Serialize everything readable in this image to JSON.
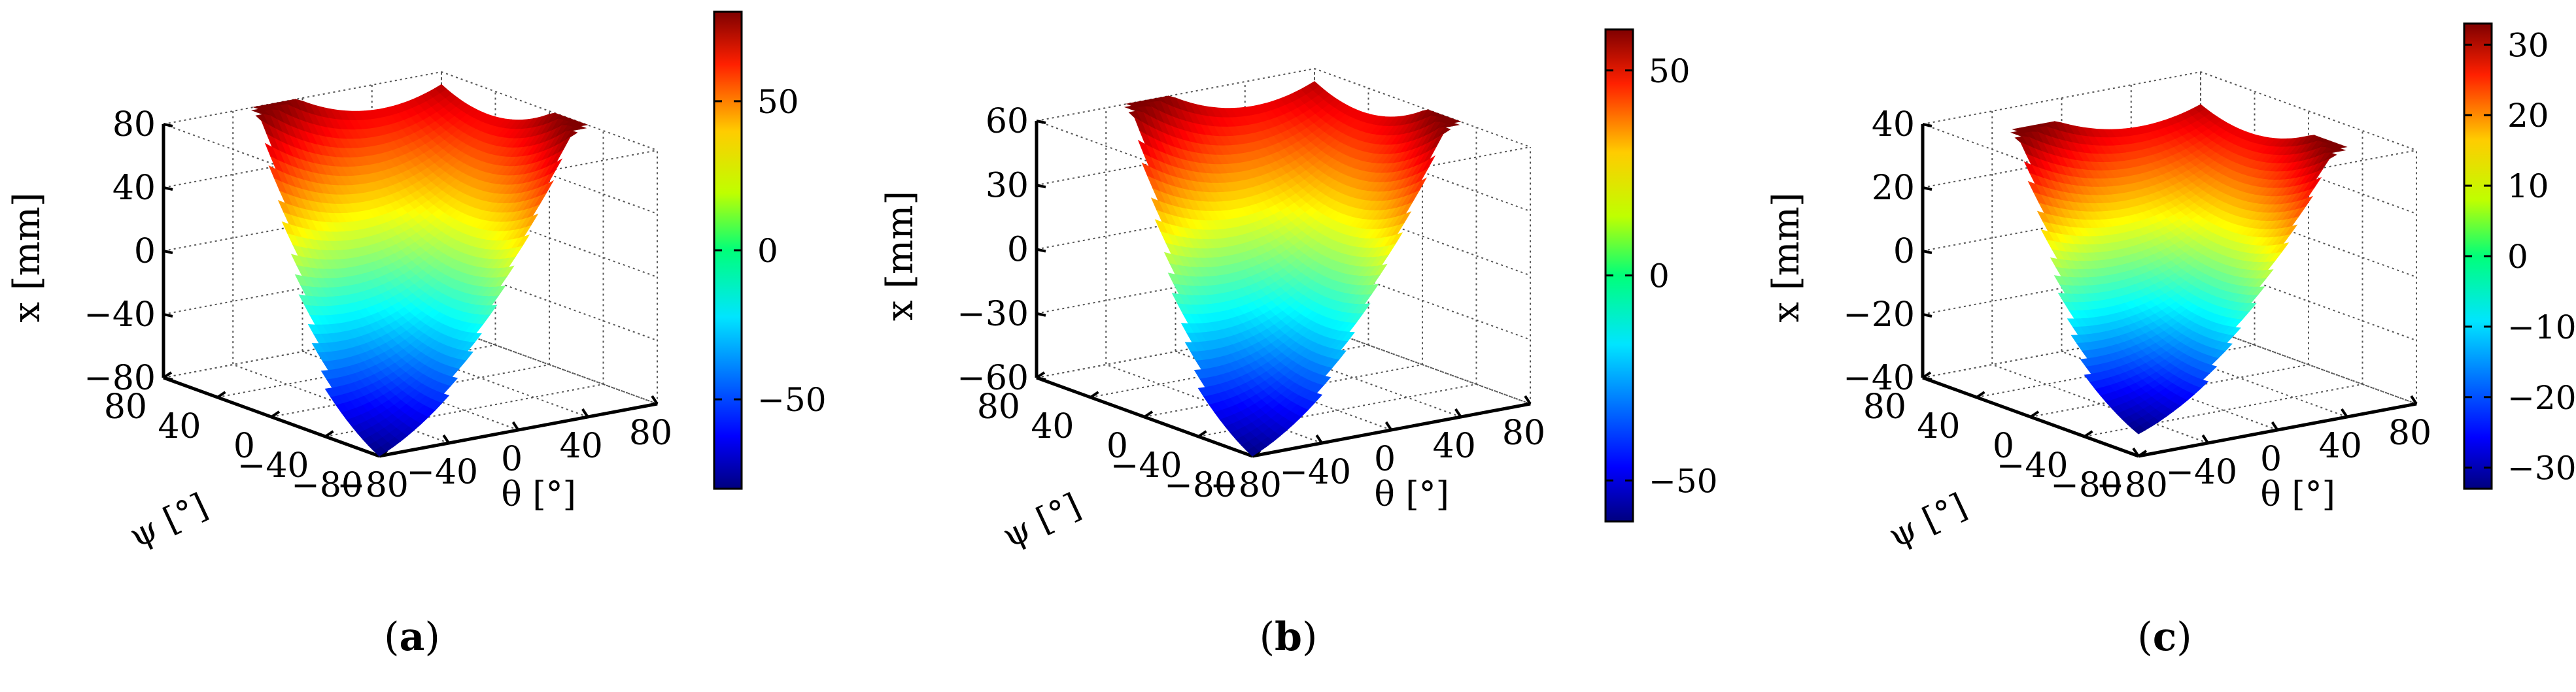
{
  "figure": {
    "captions": [
      "a",
      "b",
      "c"
    ]
  },
  "chart_data": [
    {
      "type": "surface",
      "panel": "a",
      "zlabel": "x [mm]",
      "ylabel": "ψ [°]",
      "xlabel": "θ [°]",
      "xlim": [
        -80,
        80
      ],
      "ylim": [
        -80,
        80
      ],
      "zlim": [
        -80,
        80
      ],
      "xticks": [
        -80,
        -40,
        0,
        40,
        80
      ],
      "yticks": [
        -80,
        -40,
        0,
        40,
        80
      ],
      "zticks": [
        -80,
        -40,
        0,
        40,
        80
      ],
      "z_min": -80,
      "z_max": 80,
      "z_center": 0,
      "colorbar": {
        "min": -80,
        "max": 80,
        "ticks": [
          -50,
          0,
          50
        ],
        "colormap": "jet"
      },
      "grid": true
    },
    {
      "type": "surface",
      "panel": "b",
      "zlabel": "x [mm]",
      "ylabel": "ψ [°]",
      "xlabel": "θ [°]",
      "xlim": [
        -80,
        80
      ],
      "ylim": [
        -80,
        80
      ],
      "zlim": [
        -60,
        60
      ],
      "xticks": [
        -80,
        -40,
        0,
        40,
        80
      ],
      "yticks": [
        -80,
        -40,
        0,
        40,
        80
      ],
      "zticks": [
        -60,
        -30,
        0,
        30,
        60
      ],
      "z_min": -60,
      "z_max": 60,
      "z_center": -5,
      "colorbar": {
        "min": -60,
        "max": 60,
        "ticks": [
          -50,
          0,
          50
        ],
        "colormap": "jet"
      },
      "grid": true
    },
    {
      "type": "surface",
      "panel": "c",
      "zlabel": "x [mm]",
      "ylabel": "ψ [°]",
      "xlabel": "θ [°]",
      "xlim": [
        -80,
        80
      ],
      "ylim": [
        -80,
        80
      ],
      "zlim": [
        -40,
        40
      ],
      "xticks": [
        -80,
        -40,
        0,
        40,
        80
      ],
      "yticks": [
        -80,
        -40,
        0,
        40,
        80
      ],
      "zticks": [
        -40,
        -20,
        0,
        20,
        40
      ],
      "z_min": -33,
      "z_max": 33,
      "z_center": 0,
      "colorbar": {
        "min": -33,
        "max": 33,
        "ticks": [
          -30,
          -20,
          -10,
          0,
          10,
          20,
          30
        ],
        "colormap": "jet"
      },
      "grid": true
    }
  ]
}
